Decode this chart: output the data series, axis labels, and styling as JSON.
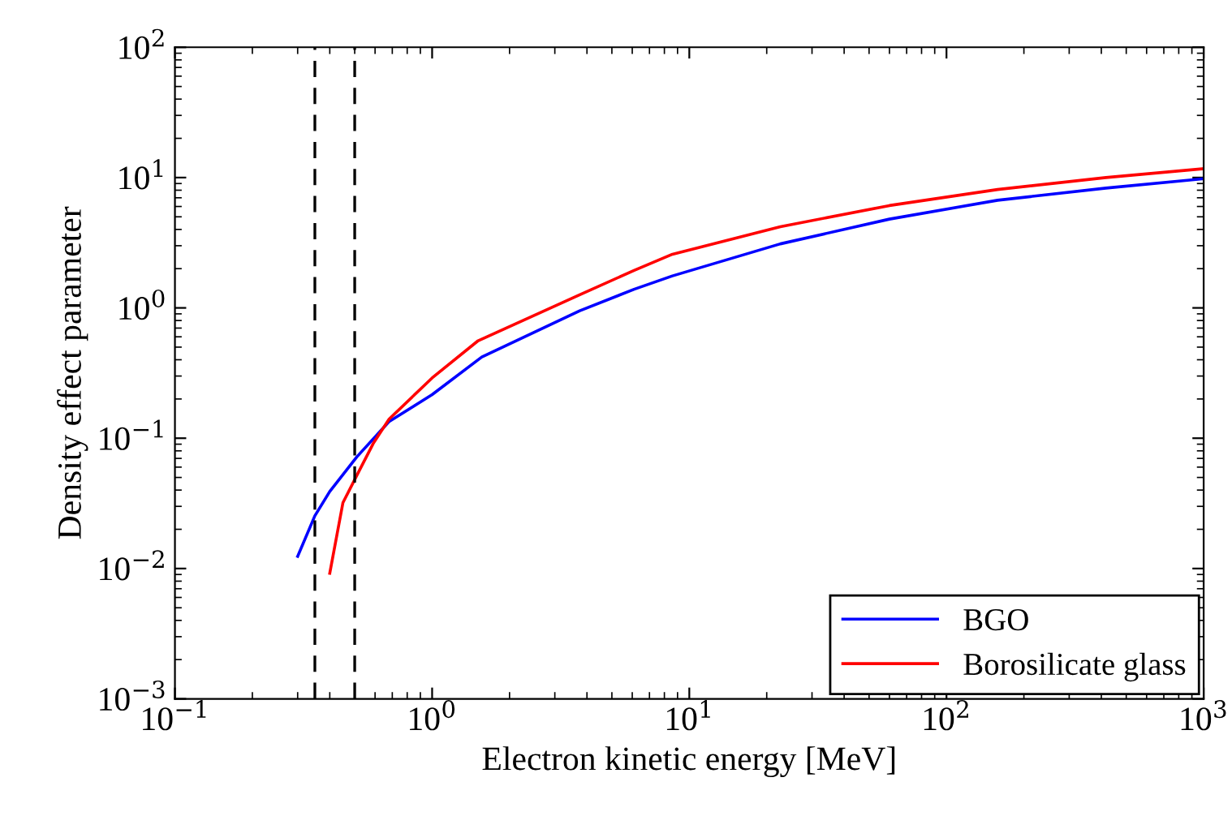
{
  "chart_data": {
    "type": "line",
    "xlabel": "Electron kinetic energy [MeV]",
    "ylabel": "Density effect parameter",
    "log": "xy",
    "xlim": [
      0.1,
      1000
    ],
    "ylim": [
      0.001,
      100
    ],
    "xticks": [
      {
        "value": 0.1,
        "label": "10$^{−1}$"
      },
      {
        "value": 1,
        "label": "10$^{0}$"
      },
      {
        "value": 10,
        "label": "10$^{1}$"
      },
      {
        "value": 100,
        "label": "10$^{2}$"
      },
      {
        "value": 1000,
        "label": "10$^{3}$"
      }
    ],
    "yticks": [
      {
        "value": 0.001,
        "label": "10$^{−3}$"
      },
      {
        "value": 0.01,
        "label": "10$^{−2}$"
      },
      {
        "value": 0.1,
        "label": "10$^{−1}$"
      },
      {
        "value": 1,
        "label": "10$^{0}$"
      },
      {
        "value": 10,
        "label": "10$^{1}$"
      },
      {
        "value": 100,
        "label": "10$^{2}$"
      }
    ],
    "grid": false,
    "legend": "bottom right",
    "line_style": "solid",
    "marker": "none",
    "ref_lines": [
      {
        "axis": "x",
        "value": 0.35,
        "color": "#000000",
        "line_style": "dashed"
      },
      {
        "axis": "x",
        "value": 0.5,
        "color": "#000000",
        "line_style": "dashed"
      }
    ],
    "series": [
      {
        "name": "BGO",
        "color": "#0000ff",
        "x": [
          0.3,
          0.35,
          0.4,
          0.51,
          0.68,
          1.0,
          1.56,
          3.75,
          6.1,
          8.6,
          22.6,
          60,
          158,
          417,
          1000
        ],
        "values": [
          0.0124,
          0.0254,
          0.039,
          0.072,
          0.134,
          0.216,
          0.42,
          0.95,
          1.39,
          1.76,
          3.1,
          4.8,
          6.7,
          8.3,
          9.8
        ]
      },
      {
        "name": "Borosilicate glass",
        "color": "#ff0000",
        "x": [
          0.4,
          0.45,
          0.51,
          0.59,
          0.68,
          1.0,
          1.51,
          3.75,
          6.1,
          8.6,
          22.6,
          60,
          158,
          417,
          1000
        ],
        "values": [
          0.0092,
          0.032,
          0.052,
          0.091,
          0.14,
          0.29,
          0.56,
          1.26,
          1.94,
          2.58,
          4.2,
          6.1,
          8.1,
          10,
          11.7
        ]
      }
    ]
  }
}
